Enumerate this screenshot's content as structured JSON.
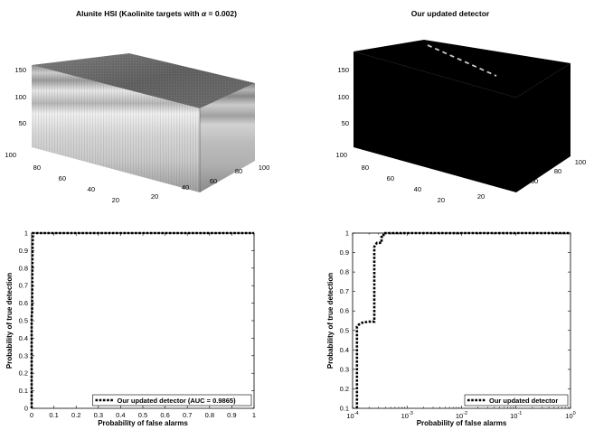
{
  "chart_data": [
    {
      "type": "other",
      "kind": "3d-hyperspectral-cube",
      "title": "Alunite HSI (Kaolinite targets with α = 0.002)",
      "title_prefix": "Alunite HSI (Kaolinite targets with ",
      "title_symbol": "α",
      "title_suffix": " = 0.002)",
      "x_ticks": [
        "20",
        "40",
        "60",
        "80",
        "100"
      ],
      "y_ticks": [
        "20",
        "40",
        "60",
        "80",
        "100"
      ],
      "z_ticks": [
        "50",
        "100",
        "150"
      ],
      "colors": {
        "cube_top": "#686868",
        "cube_side_light": "#e2e2e2",
        "cube_side_dark": "#9a9a9a"
      }
    },
    {
      "type": "other",
      "kind": "3d-detection-cube",
      "title": "Our updated detector",
      "x_ticks": [
        "20",
        "40",
        "60",
        "80",
        "100"
      ],
      "y_ticks": [
        "20",
        "40",
        "60",
        "80",
        "100"
      ],
      "z_ticks": [
        "50",
        "100",
        "150"
      ],
      "colors": {
        "cube": "#000000",
        "detections": "#c8c8c8"
      }
    },
    {
      "type": "line",
      "xlabel": "Probability of false alarms",
      "ylabel": "Probability of true detection",
      "xlim": [
        0,
        1
      ],
      "ylim": [
        0,
        1
      ],
      "x_ticks": [
        "0",
        "0.1",
        "0.2",
        "0.3",
        "0.4",
        "0.5",
        "0.6",
        "0.7",
        "0.8",
        "0.9",
        "1"
      ],
      "y_ticks": [
        "0",
        "0.1",
        "0.2",
        "0.3",
        "0.4",
        "0.5",
        "0.6",
        "0.7",
        "0.8",
        "0.9",
        "1"
      ],
      "legend_position": "bottom-right",
      "grid": false,
      "series": [
        {
          "name": "Our updated detector (AUC = 0.9865)",
          "style": "dotted",
          "x": [
            0,
            0,
            0.002,
            0.004,
            0.006,
            0.01,
            0.05,
            0.2,
            0.5,
            1
          ],
          "y": [
            0,
            0.52,
            0.55,
            0.93,
            1,
            1,
            1,
            1,
            1,
            1
          ]
        }
      ]
    },
    {
      "type": "line",
      "xlabel": "Probability of false alarms",
      "ylabel": "Probability of true detection",
      "xscale": "log",
      "xlim": [
        0.0001,
        1
      ],
      "ylim": [
        0.1,
        1
      ],
      "x_ticks": [
        {
          "base": "10",
          "exp": "-4"
        },
        {
          "base": "10",
          "exp": "-3"
        },
        {
          "base": "10",
          "exp": "-2"
        },
        {
          "base": "10",
          "exp": "-1"
        },
        {
          "base": "10",
          "exp": "0"
        }
      ],
      "y_ticks": [
        "0.1",
        "0.2",
        "0.3",
        "0.4",
        "0.5",
        "0.6",
        "0.7",
        "0.8",
        "0.9",
        "1"
      ],
      "legend_position": "bottom-right",
      "grid": false,
      "series": [
        {
          "name": "Our updated detector",
          "style": "dotted",
          "x": [
            0.00012,
            0.00012,
            0.00013,
            0.00015,
            0.0002,
            0.00025,
            0.00025,
            0.00028,
            0.00034,
            0.00034,
            0.00037,
            0.00037,
            0.001,
            0.01,
            0.1,
            1
          ],
          "y": [
            0.1,
            0.52,
            0.53,
            0.54,
            0.545,
            0.545,
            0.93,
            0.95,
            0.95,
            0.98,
            0.98,
            1,
            1,
            1,
            1,
            1
          ]
        }
      ]
    }
  ]
}
